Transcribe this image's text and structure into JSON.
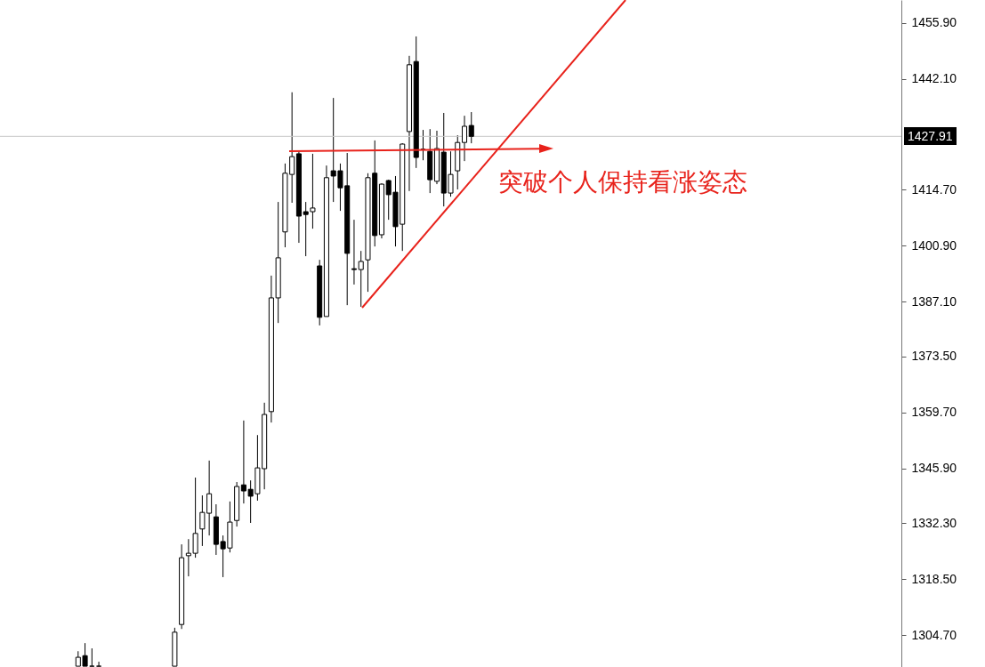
{
  "chart_data": {
    "type": "candlestick",
    "categories": [
      null,
      null,
      null,
      null,
      null,
      null,
      null,
      null,
      null,
      null,
      null,
      null,
      null,
      null,
      null,
      null,
      null,
      null,
      null,
      null,
      null,
      null,
      null,
      null,
      null,
      null,
      null,
      null,
      null,
      null,
      null,
      null,
      null,
      null,
      null,
      null,
      null,
      null,
      null,
      null,
      null,
      null,
      null,
      null,
      null,
      null,
      null,
      null,
      null,
      null,
      null,
      null,
      null,
      null,
      null,
      null,
      null,
      null,
      null,
      null,
      null,
      null,
      null,
      null,
      null,
      null,
      null,
      null,
      null,
      null,
      null,
      null,
      null,
      null,
      null,
      null,
      null,
      null,
      null,
      null,
      null,
      null,
      null,
      null,
      null,
      null,
      null,
      null,
      null,
      null,
      null,
      null,
      null,
      null,
      null,
      null,
      null,
      null,
      null,
      null,
      null,
      null,
      null,
      null,
      null,
      null,
      null,
      null,
      null,
      null,
      null,
      null,
      null,
      null,
      null,
      null,
      null,
      null,
      null,
      null,
      null,
      null,
      null,
      null,
      null,
      null,
      null,
      null,
      null,
      null,
      null
    ],
    "ohlc": [
      null,
      null,
      null,
      null,
      null,
      null,
      null,
      null,
      null,
      null,
      null,
      [
        1297,
        1300.7,
        1297,
        1299.2
      ],
      [
        1299.6,
        1302.7,
        1297,
        1297
      ],
      [
        1297,
        1301.4,
        1297,
        1297
      ],
      [
        1297,
        1298.1,
        1297,
        1297
      ],
      null,
      null,
      null,
      null,
      null,
      null,
      null,
      null,
      null,
      null,
      [
        1297,
        1306.5,
        1297,
        1305.4
      ],
      [
        1307.3,
        1327.1,
        1306.2,
        1323.8
      ],
      [
        1324.3,
        1328.4,
        1319.2,
        1324.9
      ],
      [
        1324.9,
        1343.6,
        1323.8,
        1329.8
      ],
      [
        1330.9,
        1339.2,
        1326.7,
        1335.0
      ],
      [
        1334.8,
        1347.8,
        1329.3,
        1339.6
      ],
      [
        1333.9,
        1337.0,
        1324.5,
        1327.1
      ],
      [
        1327.8,
        1329.3,
        1319.0,
        1326.0
      ],
      [
        1326.2,
        1337.7,
        1325.1,
        1332.6
      ],
      [
        1333.0,
        1342.5,
        1331.5,
        1341.4
      ],
      [
        1341.8,
        1357.7,
        1337.2,
        1340.3
      ],
      [
        1340.7,
        1342.9,
        1332.4,
        1339.0
      ],
      [
        1339.6,
        1354.1,
        1337.9,
        1346.0
      ],
      [
        1345.8,
        1362.1,
        1340.7,
        1359.2
      ],
      [
        1359.9,
        1393.5,
        1357.2,
        1388.0
      ],
      [
        1388.0,
        1411.7,
        1381.8,
        1397.9
      ],
      [
        1404.3,
        1421.2,
        1400.5,
        1418.8
      ],
      [
        1418.5,
        1438.8,
        1411.5,
        1422.9
      ],
      [
        1423.6,
        1424.2,
        1401.6,
        1408.2
      ],
      [
        1409.3,
        1411.7,
        1398.3,
        1408.6
      ],
      [
        1409.3,
        1423.6,
        1405.1,
        1410.2
      ],
      [
        1395.9,
        1397.4,
        1381.2,
        1383.2
      ],
      [
        1383.4,
        1420.7,
        1383.4,
        1417.7
      ],
      [
        1419.4,
        1437.4,
        1411.7,
        1418.1
      ],
      [
        1419.4,
        1421.2,
        1409.5,
        1415.2
      ],
      [
        1415.7,
        1423.8,
        1386.2,
        1399.0
      ],
      [
        1395.2,
        1407.3,
        1391.3,
        1395.0
      ],
      [
        1395.0,
        1399.6,
        1385.8,
        1397.0
      ],
      [
        1397.4,
        1418.8,
        1389.5,
        1417.7
      ],
      [
        1418.8,
        1426.9,
        1400.7,
        1403.4
      ],
      [
        1403.6,
        1416.3,
        1402.7,
        1416.1
      ],
      [
        1417.0,
        1417.2,
        1407.3,
        1413.5
      ],
      [
        1414.1,
        1418.1,
        1400.7,
        1405.6
      ],
      [
        1406.2,
        1426.2,
        1399.6,
        1426.0
      ],
      [
        1429.1,
        1447.8,
        1414.4,
        1445.6
      ],
      [
        1446.4,
        1452.6,
        1420.1,
        1422.7
      ],
      [
        1424.7,
        1429.5,
        1422.0,
        1424.7
      ],
      [
        1424.2,
        1429.7,
        1413.9,
        1417.2
      ],
      [
        1416.8,
        1429.3,
        1416.1,
        1424.9
      ],
      [
        1424.0,
        1433.7,
        1410.6,
        1413.9
      ],
      [
        1413.9,
        1424.2,
        1413.0,
        1418.5
      ],
      [
        1419.4,
        1428.2,
        1414.8,
        1426.4
      ],
      [
        1426.4,
        1433.0,
        1421.8,
        1430.4
      ],
      [
        1430.6,
        1433.9,
        1426.2,
        1427.91
      ],
      null,
      null,
      null,
      null,
      null,
      null,
      null,
      null,
      null,
      null,
      null,
      null,
      null,
      null,
      null,
      null,
      null,
      null,
      null,
      null,
      null,
      null,
      null,
      null,
      null,
      null,
      null,
      null,
      null,
      null,
      null,
      null,
      null,
      null,
      null,
      null,
      null,
      null,
      null,
      null,
      null,
      null,
      null,
      null,
      null,
      null,
      null,
      null,
      null,
      null,
      null,
      null,
      null,
      null,
      null,
      null,
      null,
      null,
      null,
      null,
      null,
      null
    ],
    "ylim": [
      1296.8,
      1461.6
    ],
    "yticks": [
      {
        "value": 1304.7,
        "label": "1304.70"
      },
      {
        "value": 1318.5,
        "label": "1318.50"
      },
      {
        "value": 1332.3,
        "label": "1332.30"
      },
      {
        "value": 1345.9,
        "label": "1345.90"
      },
      {
        "value": 1359.7,
        "label": "1359.70"
      },
      {
        "value": 1373.5,
        "label": "1373.50"
      },
      {
        "value": 1387.1,
        "label": "1387.10"
      },
      {
        "value": 1400.9,
        "label": "1400.90"
      },
      {
        "value": 1414.7,
        "label": "1414.70"
      },
      {
        "value": 1442.1,
        "label": "1442.10"
      },
      {
        "value": 1455.9,
        "label": "1455.90"
      }
    ],
    "ref_lines": [
      {
        "axis": "y",
        "value": 1427.91,
        "label": "1427.91",
        "color": "#c8c8c8"
      }
    ],
    "annotations": [
      "突破个人保持看涨姿态"
    ]
  }
}
